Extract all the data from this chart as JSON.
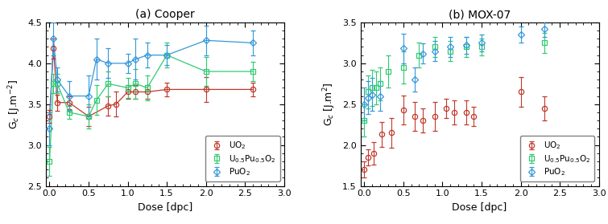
{
  "panel_a": {
    "title": "(a) Cooper",
    "ylabel": "G$_c$ [J.m$^{-2}$]",
    "xlabel": "Dose [dpc]",
    "xlim": [
      -0.05,
      3
    ],
    "ylim": [
      2.5,
      4.5
    ],
    "yticks": [
      2.5,
      3.0,
      3.5,
      4.0,
      4.5
    ],
    "xticks": [
      0,
      0.5,
      1.0,
      1.5,
      2.0,
      2.5,
      3.0
    ],
    "UO2": {
      "x": [
        0.0,
        0.05,
        0.1,
        0.25,
        0.5,
        0.75,
        0.85,
        1.0,
        1.1,
        1.25,
        1.5,
        2.0,
        2.6
      ],
      "y": [
        3.35,
        4.18,
        3.52,
        3.52,
        3.35,
        3.48,
        3.5,
        3.65,
        3.65,
        3.65,
        3.68,
        3.68,
        3.68
      ],
      "yerr": [
        0.08,
        0.12,
        0.1,
        0.08,
        0.12,
        0.12,
        0.15,
        0.08,
        0.08,
        0.08,
        0.08,
        0.15,
        0.08
      ],
      "color": "#c0392b",
      "marker": "o",
      "label": "UO$_2$"
    },
    "UPuO2": {
      "x": [
        0.0,
        0.05,
        0.1,
        0.25,
        0.5,
        0.6,
        0.75,
        1.0,
        1.1,
        1.25,
        1.5,
        2.0,
        2.6
      ],
      "y": [
        2.8,
        3.75,
        3.75,
        3.4,
        3.35,
        3.55,
        3.75,
        3.7,
        3.75,
        3.7,
        4.1,
        3.9,
        3.9
      ],
      "yerr": [
        0.18,
        0.12,
        0.12,
        0.08,
        0.15,
        0.18,
        0.15,
        0.12,
        0.18,
        0.15,
        0.15,
        0.18,
        0.12
      ],
      "color": "#2ecc71",
      "marker": "s",
      "label": "U$_{0.5}$Pu$_{0.5}$O$_2$"
    },
    "PuO2": {
      "x": [
        0.0,
        0.05,
        0.1,
        0.25,
        0.5,
        0.6,
        0.75,
        1.0,
        1.1,
        1.25,
        1.5,
        2.0,
        2.6
      ],
      "y": [
        3.2,
        4.3,
        3.8,
        3.6,
        3.6,
        4.05,
        4.0,
        4.0,
        4.05,
        4.1,
        4.1,
        4.28,
        4.25
      ],
      "yerr": [
        0.2,
        0.2,
        0.15,
        0.18,
        0.25,
        0.25,
        0.18,
        0.12,
        0.25,
        0.15,
        0.12,
        0.18,
        0.15
      ],
      "color": "#3498db",
      "marker": "D",
      "label": "PuO$_2$"
    }
  },
  "panel_b": {
    "title": "(b) MOX-07",
    "ylabel": "G$_c$ [J.m$^{2}$]",
    "xlabel": "Dose [dpc]",
    "xlim": [
      -0.05,
      3
    ],
    "ylim": [
      1.5,
      3.5
    ],
    "yticks": [
      1.5,
      2.0,
      2.5,
      3.0,
      3.5
    ],
    "xticks": [
      0,
      0.5,
      1.0,
      1.5,
      2.0,
      2.5,
      3.0
    ],
    "UO2": {
      "x": [
        0.0,
        0.05,
        0.12,
        0.22,
        0.35,
        0.5,
        0.65,
        0.75,
        0.9,
        1.05,
        1.15,
        1.3,
        1.4,
        2.0,
        2.3
      ],
      "y": [
        1.7,
        1.85,
        1.9,
        2.13,
        2.15,
        2.43,
        2.35,
        2.3,
        2.35,
        2.45,
        2.4,
        2.4,
        2.35,
        2.65,
        2.45
      ],
      "yerr": [
        0.1,
        0.1,
        0.14,
        0.15,
        0.18,
        0.18,
        0.18,
        0.15,
        0.18,
        0.12,
        0.15,
        0.15,
        0.12,
        0.18,
        0.15
      ],
      "color": "#c0392b",
      "marker": "o",
      "label": "UO$_2$"
    },
    "UPuO2": {
      "x": [
        0.0,
        0.05,
        0.1,
        0.15,
        0.2,
        0.3,
        0.5,
        0.7,
        0.9,
        1.1,
        1.3,
        1.5,
        2.3
      ],
      "y": [
        2.3,
        2.65,
        2.7,
        2.7,
        2.75,
        2.9,
        2.95,
        3.1,
        3.2,
        3.15,
        3.2,
        3.2,
        3.25
      ],
      "yerr": [
        0.2,
        0.2,
        0.22,
        0.2,
        0.2,
        0.2,
        0.2,
        0.15,
        0.12,
        0.12,
        0.12,
        0.1,
        0.12
      ],
      "color": "#2ecc71",
      "marker": "s",
      "label": "U$_{0.5}$Pu$_{0.5}$O$_2$"
    },
    "PuO2": {
      "x": [
        0.0,
        0.05,
        0.1,
        0.2,
        0.5,
        0.65,
        0.75,
        0.9,
        1.1,
        1.3,
        1.5,
        2.0,
        2.3
      ],
      "y": [
        2.5,
        2.58,
        2.62,
        2.6,
        3.18,
        2.8,
        3.12,
        3.15,
        3.2,
        3.22,
        3.25,
        3.35,
        3.42
      ],
      "yerr": [
        0.2,
        0.2,
        0.2,
        0.18,
        0.18,
        0.15,
        0.12,
        0.12,
        0.12,
        0.1,
        0.1,
        0.1,
        0.1
      ],
      "color": "#3498db",
      "marker": "D",
      "label": "PuO$_2$"
    }
  },
  "legend_loc": "lower right",
  "markersize": 4.5,
  "linewidth": 0.9,
  "fit_linewidth": 1.3
}
